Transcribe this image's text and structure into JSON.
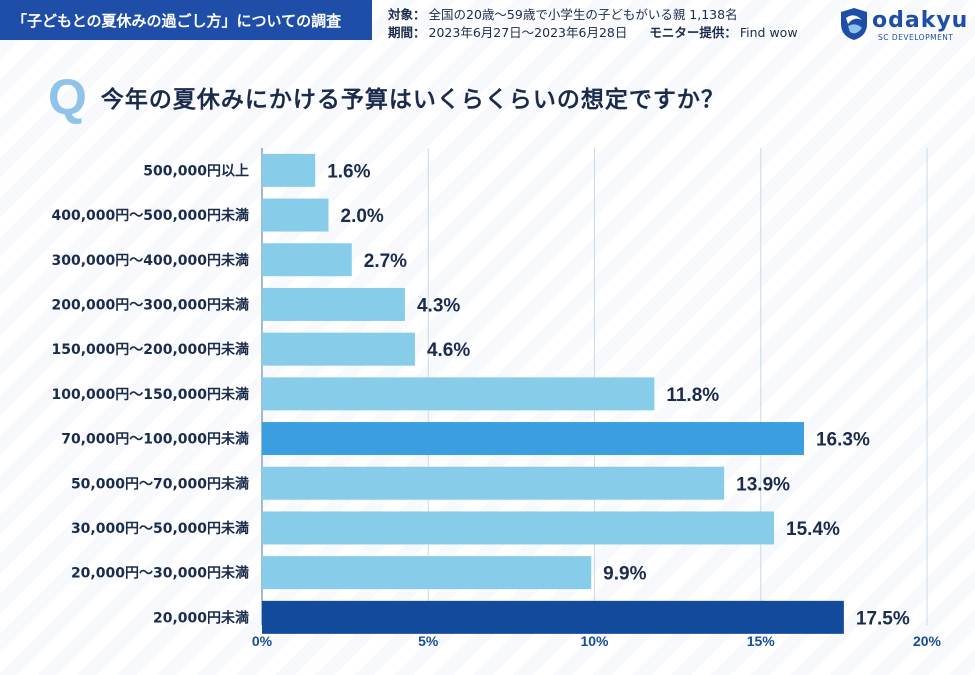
{
  "header": {
    "survey_title": "「子どもとの夏休みの過ごし方」についての調査",
    "target_label": "対象：",
    "target_value": "全国の20歳～59歳で小学生の子どもがいる親 1,138名",
    "period_label": "期間：",
    "period_value": "2023年6月27日～2023年6月28日",
    "monitor_label": "モニター提供：",
    "monitor_value": "Find wow",
    "logo_text": "odakyu",
    "logo_sub": "SC DEVELOPMENT"
  },
  "question": {
    "mark": "Q",
    "text": "今年の夏休みにかける予算はいくらくらいの想定ですか？"
  },
  "colors": {
    "bar_default": "#87cdea",
    "bar_highlight": "#3a9ee0",
    "bar_top": "#124a9c",
    "header_bg": "#1f4ea8",
    "gridline": "#c9daea"
  },
  "chart_data": {
    "type": "bar",
    "orientation": "horizontal",
    "title": "今年の夏休みにかける予算はいくらくらいの想定ですか？",
    "xlabel": "",
    "ylabel": "",
    "xlim": [
      0,
      20
    ],
    "ticks": [
      0,
      5,
      10,
      15,
      20
    ],
    "tick_labels": [
      "0%",
      "5%",
      "10%",
      "15%",
      "20%"
    ],
    "categories": [
      "500,000円以上",
      "400,000円～500,000円未満",
      "300,000円～400,000円未満",
      "200,000円～300,000円未満",
      "150,000円～200,000円未満",
      "100,000円～150,000円未満",
      "70,000円～100,000円未満",
      "50,000円～70,000円未満",
      "30,000円～50,000円未満",
      "20,000円～30,000円未満",
      "20,000円未満"
    ],
    "values": [
      1.6,
      2.0,
      2.7,
      4.3,
      4.6,
      11.8,
      16.3,
      13.9,
      15.4,
      9.9,
      17.5
    ],
    "value_labels": [
      "1.6%",
      "2.0%",
      "2.7%",
      "4.3%",
      "4.6%",
      "11.8%",
      "16.3%",
      "13.9%",
      "15.4%",
      "9.9%",
      "17.5%"
    ],
    "highlight": [
      "default",
      "default",
      "default",
      "default",
      "default",
      "default",
      "highlight",
      "default",
      "default",
      "default",
      "top"
    ],
    "grid": true
  }
}
